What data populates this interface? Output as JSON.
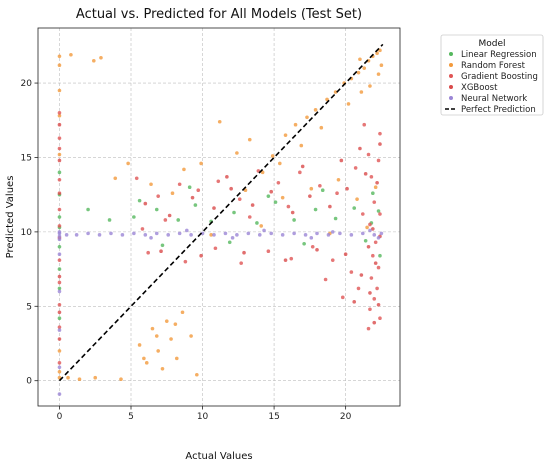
{
  "chart_data": {
    "type": "scatter",
    "title": "Actual vs. Predicted for All Models (Test Set)",
    "xlabel": "Actual Values",
    "ylabel": "Predicted Values",
    "xlim": [
      -1.5,
      23.8
    ],
    "ylim": [
      -1.7,
      23.7
    ],
    "xticks": [
      0,
      5,
      10,
      15,
      20
    ],
    "yticks": [
      0,
      5,
      10,
      15,
      20
    ],
    "grid": true,
    "legend": {
      "title": "Model",
      "placement": "outside-right",
      "entries": [
        "Linear Regression",
        "Random Forest",
        "Gradient Boosting",
        "XGBoost",
        "Neural Network",
        "Perfect Prediction"
      ]
    },
    "colors": {
      "Linear Regression": "#55b85e",
      "Random Forest": "#f39a3c",
      "Gradient Boosting": "#e05555",
      "XGBoost": "#d94a4a",
      "Neural Network": "#9b86d6",
      "Perfect Prediction": "#000000"
    },
    "reference_line": {
      "name": "Perfect Prediction",
      "x": [
        0,
        22.6
      ],
      "y": [
        0,
        22.6
      ],
      "style": "dashed"
    },
    "series": [
      {
        "name": "Linear Regression",
        "points": [
          [
            0,
            14.0
          ],
          [
            0,
            12.5
          ],
          [
            0,
            11.0
          ],
          [
            0,
            10.3
          ],
          [
            0,
            9.0
          ],
          [
            0,
            7.5
          ],
          [
            0,
            6.2
          ],
          [
            0,
            4.2
          ],
          [
            2.0,
            11.5
          ],
          [
            3.5,
            10.8
          ],
          [
            5.2,
            11.0
          ],
          [
            6.8,
            11.5
          ],
          [
            8.3,
            10.8
          ],
          [
            9.5,
            11.8
          ],
          [
            10.6,
            10.7
          ],
          [
            12.2,
            11.3
          ],
          [
            13.8,
            10.6
          ],
          [
            15.1,
            12.0
          ],
          [
            16.4,
            10.8
          ],
          [
            17.9,
            11.5
          ],
          [
            19.3,
            10.9
          ],
          [
            20.6,
            11.6
          ],
          [
            21.8,
            10.6
          ],
          [
            22.3,
            11.4
          ],
          [
            7.2,
            9.1
          ],
          [
            11.9,
            9.3
          ],
          [
            17.1,
            9.2
          ],
          [
            21.4,
            9.4
          ],
          [
            5.6,
            12.1
          ],
          [
            14.6,
            12.4
          ],
          [
            21.9,
            12.6
          ],
          [
            9.1,
            13.0
          ],
          [
            18.4,
            12.8
          ],
          [
            22.4,
            8.4
          ]
        ]
      },
      {
        "name": "Random Forest",
        "points": [
          [
            0,
            21.8
          ],
          [
            0,
            21.2
          ],
          [
            0.8,
            21.9
          ],
          [
            2.4,
            21.5
          ],
          [
            2.9,
            21.7
          ],
          [
            0,
            19.5
          ],
          [
            0,
            17.8
          ],
          [
            0,
            15.2
          ],
          [
            0,
            2.0
          ],
          [
            0,
            0.6
          ],
          [
            0,
            0.2
          ],
          [
            0.6,
            0.2
          ],
          [
            1.4,
            0.1
          ],
          [
            2.5,
            0.2
          ],
          [
            4.3,
            0.1
          ],
          [
            5.6,
            2.4
          ],
          [
            6.1,
            1.2
          ],
          [
            6.5,
            3.5
          ],
          [
            6.9,
            2.0
          ],
          [
            7.2,
            0.8
          ],
          [
            7.5,
            4.0
          ],
          [
            7.8,
            2.8
          ],
          [
            8.2,
            1.5
          ],
          [
            8.6,
            4.6
          ],
          [
            9.2,
            3.0
          ],
          [
            5.9,
            1.5
          ],
          [
            6.8,
            3.0
          ],
          [
            8.1,
            3.8
          ],
          [
            9.6,
            0.4
          ],
          [
            9.9,
            14.6
          ],
          [
            11.2,
            17.4
          ],
          [
            12.4,
            15.3
          ],
          [
            13.3,
            16.2
          ],
          [
            14.2,
            14.0
          ],
          [
            14.9,
            15.1
          ],
          [
            15.8,
            16.5
          ],
          [
            16.5,
            17.2
          ],
          [
            17.3,
            17.7
          ],
          [
            17.9,
            18.2
          ],
          [
            18.7,
            18.9
          ],
          [
            19.3,
            19.4
          ],
          [
            19.9,
            20.0
          ],
          [
            20.4,
            20.3
          ],
          [
            20.9,
            20.7
          ],
          [
            21.3,
            21.0
          ],
          [
            21.6,
            21.5
          ],
          [
            21.9,
            21.8
          ],
          [
            22.2,
            22.0
          ],
          [
            22.4,
            22.2
          ],
          [
            21.1,
            19.4
          ],
          [
            20.2,
            18.6
          ],
          [
            18.3,
            17.0
          ],
          [
            16.9,
            15.8
          ],
          [
            15.4,
            14.6
          ],
          [
            22.3,
            20.6
          ],
          [
            21.7,
            19.8
          ],
          [
            22.5,
            21.2
          ],
          [
            21.0,
            21.6
          ],
          [
            6.4,
            13.2
          ],
          [
            7.9,
            12.6
          ],
          [
            8.7,
            14.2
          ],
          [
            4.8,
            14.6
          ],
          [
            3.9,
            13.6
          ],
          [
            13.0,
            12.8
          ],
          [
            15.6,
            12.3
          ],
          [
            17.6,
            12.9
          ],
          [
            19.5,
            13.5
          ],
          [
            20.8,
            12.2
          ],
          [
            22.1,
            13.0
          ],
          [
            10.6,
            9.8
          ],
          [
            14.1,
            10.4
          ],
          [
            18.9,
            9.9
          ],
          [
            21.5,
            10.3
          ]
        ]
      },
      {
        "name": "Gradient Boosting",
        "points": [
          [
            0,
            18.0
          ],
          [
            0,
            16.3
          ],
          [
            0,
            15.6
          ],
          [
            0,
            13.5
          ],
          [
            0,
            11.5
          ],
          [
            0,
            10.4
          ],
          [
            0,
            8.1
          ],
          [
            0,
            6.6
          ],
          [
            0,
            5.1
          ],
          [
            0,
            3.6
          ],
          [
            0,
            1.2
          ],
          [
            5.4,
            13.6
          ],
          [
            6.9,
            12.4
          ],
          [
            8.4,
            13.2
          ],
          [
            9.7,
            12.8
          ],
          [
            11.1,
            13.4
          ],
          [
            12.6,
            12.2
          ],
          [
            13.9,
            14.1
          ],
          [
            15.3,
            13.3
          ],
          [
            16.8,
            14.0
          ],
          [
            18.2,
            13.1
          ],
          [
            19.4,
            12.6
          ],
          [
            20.7,
            14.3
          ],
          [
            21.6,
            15.2
          ],
          [
            22.3,
            14.8
          ],
          [
            21.8,
            13.7
          ],
          [
            22.0,
            12.0
          ],
          [
            22.4,
            11.2
          ],
          [
            21.7,
            10.5
          ],
          [
            22.1,
            9.3
          ],
          [
            21.9,
            8.4
          ],
          [
            22.3,
            7.6
          ],
          [
            21.8,
            6.9
          ],
          [
            22.2,
            6.2
          ],
          [
            22.0,
            5.5
          ],
          [
            21.7,
            4.8
          ],
          [
            22.4,
            4.2
          ],
          [
            21.6,
            3.5
          ],
          [
            6.2,
            8.6
          ],
          [
            8.8,
            8.0
          ],
          [
            10.9,
            8.9
          ],
          [
            12.7,
            7.9
          ],
          [
            14.6,
            8.7
          ],
          [
            16.2,
            8.2
          ],
          [
            17.7,
            9.0
          ],
          [
            19.1,
            8.1
          ],
          [
            20.4,
            7.3
          ],
          [
            20.9,
            6.2
          ],
          [
            19.8,
            5.6
          ],
          [
            18.6,
            6.8
          ],
          [
            5.8,
            10.2
          ],
          [
            7.4,
            10.8
          ],
          [
            13.3,
            11.0
          ],
          [
            16.0,
            11.7
          ],
          [
            21.2,
            11.2
          ],
          [
            21.3,
            17.2
          ],
          [
            22.4,
            16.6
          ]
        ]
      },
      {
        "name": "XGBoost",
        "points": [
          [
            0,
            17.2
          ],
          [
            0,
            14.8
          ],
          [
            0,
            12.6
          ],
          [
            0,
            9.6
          ],
          [
            0,
            7.0
          ],
          [
            0,
            4.6
          ],
          [
            0,
            2.8
          ],
          [
            6.0,
            11.9
          ],
          [
            7.7,
            11.1
          ],
          [
            9.3,
            12.3
          ],
          [
            10.8,
            11.6
          ],
          [
            12.0,
            12.9
          ],
          [
            13.5,
            11.8
          ],
          [
            14.8,
            12.7
          ],
          [
            16.3,
            11.3
          ],
          [
            17.5,
            12.4
          ],
          [
            18.9,
            11.7
          ],
          [
            20.1,
            12.9
          ],
          [
            21.4,
            13.9
          ],
          [
            22.2,
            13.3
          ],
          [
            21.9,
            10.2
          ],
          [
            22.4,
            9.7
          ],
          [
            21.6,
            9.0
          ],
          [
            22.1,
            7.9
          ],
          [
            21.7,
            5.9
          ],
          [
            22.3,
            5.1
          ],
          [
            22.0,
            3.9
          ],
          [
            7.1,
            8.7
          ],
          [
            9.9,
            8.4
          ],
          [
            12.9,
            8.6
          ],
          [
            15.8,
            8.1
          ],
          [
            18.0,
            8.8
          ],
          [
            20.0,
            8.5
          ],
          [
            21.1,
            7.1
          ],
          [
            20.6,
            5.3
          ],
          [
            11.7,
            13.7
          ],
          [
            17.0,
            14.4
          ],
          [
            19.7,
            14.8
          ],
          [
            21.0,
            15.6
          ],
          [
            22.4,
            15.9
          ]
        ]
      },
      {
        "name": "Neural Network",
        "points": [
          [
            0,
            9.7
          ],
          [
            0,
            9.9
          ],
          [
            0,
            10.0
          ],
          [
            0,
            9.5
          ],
          [
            0,
            3.4
          ],
          [
            0,
            6.0
          ],
          [
            0,
            8.5
          ],
          [
            0,
            0.9
          ],
          [
            0,
            -0.9
          ],
          [
            0.5,
            9.8
          ],
          [
            1.2,
            9.8
          ],
          [
            2.0,
            9.9
          ],
          [
            2.8,
            9.8
          ],
          [
            3.6,
            9.9
          ],
          [
            4.4,
            9.8
          ],
          [
            5.2,
            9.9
          ],
          [
            6.0,
            9.8
          ],
          [
            6.8,
            9.9
          ],
          [
            7.6,
            9.8
          ],
          [
            8.4,
            9.9
          ],
          [
            9.2,
            9.8
          ],
          [
            10.0,
            9.9
          ],
          [
            10.8,
            9.8
          ],
          [
            11.6,
            9.9
          ],
          [
            12.4,
            9.8
          ],
          [
            13.2,
            9.9
          ],
          [
            14.0,
            9.8
          ],
          [
            14.8,
            9.9
          ],
          [
            15.6,
            9.8
          ],
          [
            16.4,
            9.9
          ],
          [
            17.2,
            9.8
          ],
          [
            18.0,
            9.9
          ],
          [
            18.8,
            9.8
          ],
          [
            19.6,
            9.9
          ],
          [
            20.4,
            9.8
          ],
          [
            21.2,
            9.9
          ],
          [
            22.0,
            9.8
          ],
          [
            22.5,
            9.9
          ],
          [
            8.9,
            10.1
          ],
          [
            14.3,
            10.1
          ],
          [
            19.1,
            10.0
          ],
          [
            21.7,
            10.1
          ],
          [
            22.3,
            9.6
          ],
          [
            17.6,
            9.6
          ],
          [
            12.1,
            9.6
          ],
          [
            6.4,
            9.6
          ]
        ]
      }
    ]
  }
}
